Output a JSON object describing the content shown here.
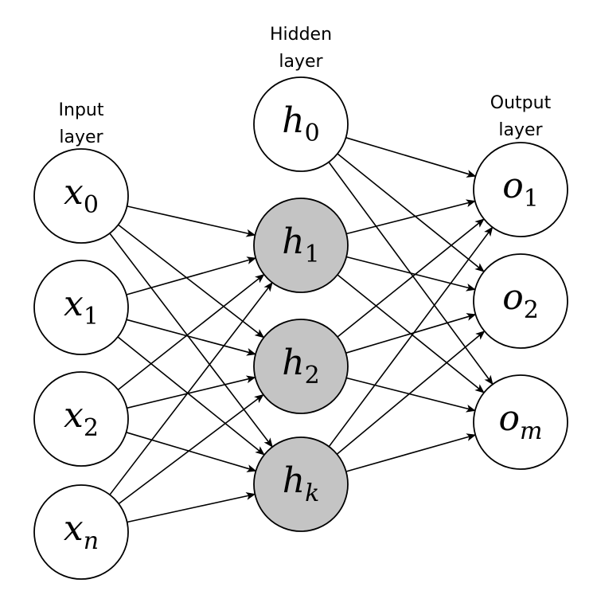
{
  "colors": {
    "plain_node": "#ffffff",
    "hidden_node": "#c4c4c4",
    "stroke": "#000000"
  },
  "layers": [
    {
      "id": "input",
      "label_lines": [
        "Input",
        "layer"
      ],
      "nodes": [
        {
          "id": "x0",
          "base": "x",
          "sub": "0",
          "sub_italic": false,
          "filled": false
        },
        {
          "id": "x1",
          "base": "x",
          "sub": "1",
          "sub_italic": false,
          "filled": false
        },
        {
          "id": "x2",
          "base": "x",
          "sub": "2",
          "sub_italic": false,
          "filled": false
        },
        {
          "id": "xn",
          "base": "x",
          "sub": "n",
          "sub_italic": true,
          "filled": false
        }
      ]
    },
    {
      "id": "hidden",
      "label_lines": [
        "Hidden",
        "layer"
      ],
      "nodes": [
        {
          "id": "h0",
          "base": "h",
          "sub": "0",
          "sub_italic": false,
          "filled": false
        },
        {
          "id": "h1",
          "base": "h",
          "sub": "1",
          "sub_italic": false,
          "filled": true
        },
        {
          "id": "h2",
          "base": "h",
          "sub": "2",
          "sub_italic": false,
          "filled": true
        },
        {
          "id": "hk",
          "base": "h",
          "sub": "k",
          "sub_italic": true,
          "filled": true
        }
      ]
    },
    {
      "id": "output",
      "label_lines": [
        "Output",
        "layer"
      ],
      "nodes": [
        {
          "id": "o1",
          "base": "o",
          "sub": "1",
          "sub_italic": false,
          "filled": false
        },
        {
          "id": "o2",
          "base": "o",
          "sub": "2",
          "sub_italic": false,
          "filled": false
        },
        {
          "id": "om",
          "base": "o",
          "sub": "m",
          "sub_italic": true,
          "filled": false
        }
      ]
    }
  ],
  "edges": [
    [
      "x0",
      "h1"
    ],
    [
      "x0",
      "h2"
    ],
    [
      "x0",
      "hk"
    ],
    [
      "x1",
      "h1"
    ],
    [
      "x1",
      "h2"
    ],
    [
      "x1",
      "hk"
    ],
    [
      "x2",
      "h1"
    ],
    [
      "x2",
      "h2"
    ],
    [
      "x2",
      "hk"
    ],
    [
      "xn",
      "h1"
    ],
    [
      "xn",
      "h2"
    ],
    [
      "xn",
      "hk"
    ],
    [
      "h0",
      "o1"
    ],
    [
      "h0",
      "o2"
    ],
    [
      "h0",
      "om"
    ],
    [
      "h1",
      "o1"
    ],
    [
      "h1",
      "o2"
    ],
    [
      "h1",
      "om"
    ],
    [
      "h2",
      "o1"
    ],
    [
      "h2",
      "o2"
    ],
    [
      "h2",
      "om"
    ],
    [
      "hk",
      "o1"
    ],
    [
      "hk",
      "o2"
    ],
    [
      "hk",
      "om"
    ]
  ]
}
